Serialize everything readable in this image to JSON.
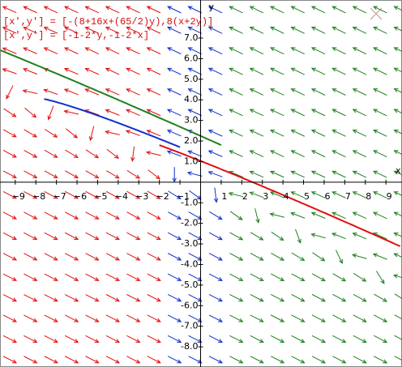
{
  "chart_data": {
    "type": "vector-field",
    "equations": [
      "[x',y'] = [-(8+16x+(65/2)y),8(x+2y)]",
      "[x',y'] = [-1-2*y,-1-2*x]"
    ],
    "x_label": "x",
    "y_label": "y",
    "xlim": [
      -9.74,
      9.78
    ],
    "ylim": [
      -8.98,
      8.85
    ],
    "xticks": [
      {
        "value": -9,
        "label": "−9"
      },
      {
        "value": -8,
        "label": "−8"
      },
      {
        "value": -7,
        "label": "−7"
      },
      {
        "value": -6,
        "label": "−6"
      },
      {
        "value": -5,
        "label": "−5"
      },
      {
        "value": -4,
        "label": "−4"
      },
      {
        "value": -3,
        "label": "−3"
      },
      {
        "value": -2,
        "label": "−2"
      },
      {
        "value": -1,
        "label": "−1"
      },
      1,
      2,
      3,
      4,
      5,
      6,
      7,
      8,
      9
    ],
    "yticks": [
      {
        "value": 7,
        "label": "7.0"
      },
      {
        "value": 6,
        "label": "6.0"
      },
      {
        "value": 5,
        "label": "5.0"
      },
      {
        "value": 4,
        "label": "4.0"
      },
      {
        "value": 3,
        "label": "3.0"
      },
      {
        "value": 2,
        "label": "2.0"
      },
      {
        "value": 1,
        "label": "1.0"
      },
      {
        "value": -1,
        "label": "-1.0"
      },
      {
        "value": -2,
        "label": "-2.0"
      },
      {
        "value": -3,
        "label": "-3.0"
      },
      {
        "value": -4,
        "label": "-4.0"
      },
      {
        "value": -5,
        "label": "-5.0"
      },
      {
        "value": -6,
        "label": "-6.0"
      },
      {
        "value": -7,
        "label": "-7.0"
      },
      {
        "value": -8,
        "label": "-8.0"
      }
    ]
  }
}
